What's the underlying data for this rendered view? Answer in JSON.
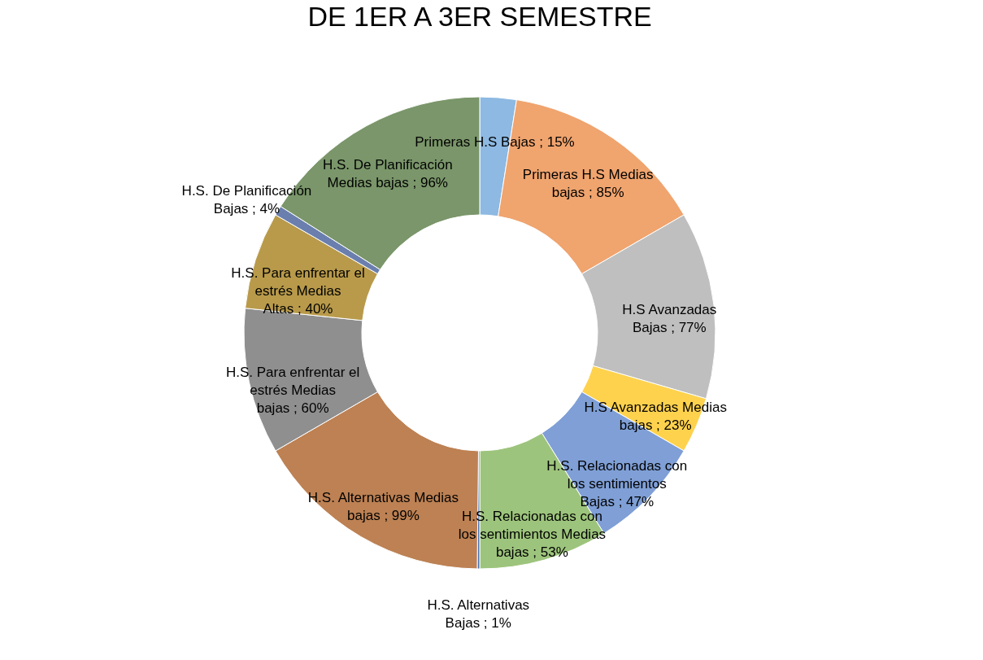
{
  "chart_data": {
    "type": "donut",
    "title": "DE 1ER A 3ER SEMESTRE",
    "categories": [
      "Primeras H.S Bajas",
      "Primeras H.S Medias bajas",
      "H.S Avanzadas Bajas",
      "H.S Avanzadas Medias bajas",
      "H.S. Relacionadas con los sentimientos  Bajas",
      "H.S. Relacionadas con los sentimientos Medias bajas",
      "H.S. Alternativas Bajas",
      "H.S. Alternativas Medias bajas",
      "H.S. Para enfrentar el estrés  Medias bajas",
      "H.S. Para enfrentar el estrés  Medias Altas",
      "H.S. De Planificación Bajas",
      "H.S. De Planificación Medias bajas"
    ],
    "values": [
      15,
      85,
      77,
      23,
      47,
      53,
      1,
      99,
      60,
      40,
      4,
      96
    ],
    "value_labels": [
      "15%",
      "85%",
      "77%",
      "23%",
      "47%",
      "53%",
      "1%",
      "99%",
      "60%",
      "40%",
      "4%",
      "96%"
    ],
    "colors": [
      "#8db9e2",
      "#f0a46e",
      "#bfbfbf",
      "#ffd24d",
      "#7f9fd6",
      "#9dc47c",
      "#4a6fb0",
      "#bd8153",
      "#8f8f8f",
      "#b89a4a",
      "#6b7fae",
      "#7a966a"
    ],
    "legend": false
  }
}
